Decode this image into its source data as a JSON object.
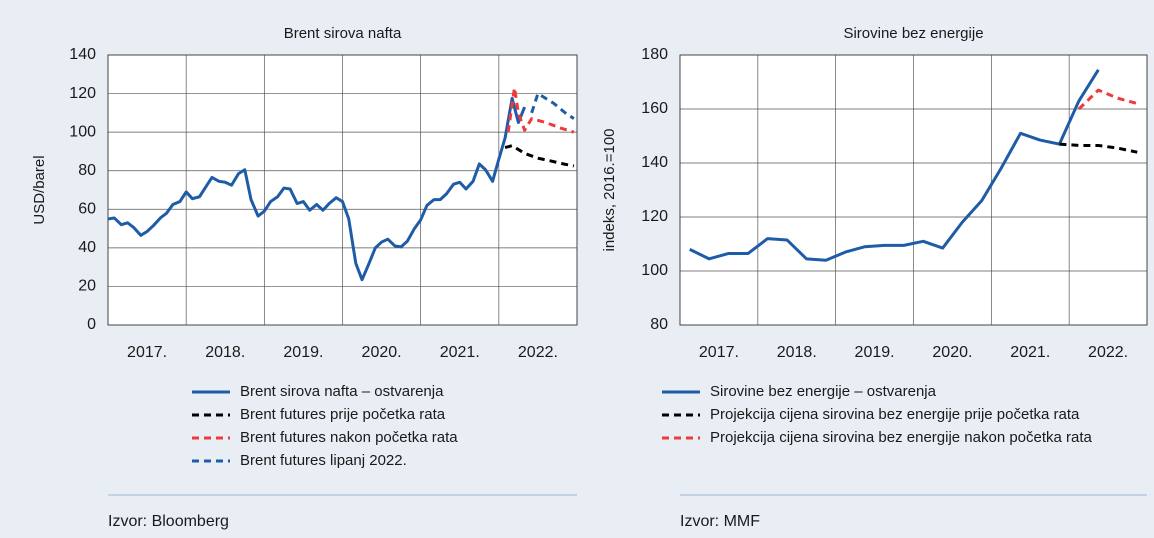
{
  "chart_data": [
    {
      "type": "line",
      "title": "Brent sirova nafta",
      "ylabel": "USD/barel",
      "categories": [
        "2017.",
        "2018.",
        "2019.",
        "2020.",
        "2021.",
        "2022."
      ],
      "xlim": [
        2017,
        2023
      ],
      "ylim": [
        0,
        140
      ],
      "yticks": [
        0,
        20,
        40,
        60,
        80,
        100,
        120,
        140
      ],
      "grid": true,
      "series": [
        {
          "name": "Brent sirova nafta – ostvarenja",
          "color": "#1f5ca8",
          "dashed": false,
          "x": [
            2017.0,
            2017.08,
            2017.17,
            2017.25,
            2017.33,
            2017.42,
            2017.5,
            2017.58,
            2017.67,
            2017.75,
            2017.83,
            2017.92,
            2018.0,
            2018.08,
            2018.17,
            2018.25,
            2018.33,
            2018.42,
            2018.5,
            2018.58,
            2018.67,
            2018.75,
            2018.83,
            2018.92,
            2019.0,
            2019.08,
            2019.17,
            2019.25,
            2019.33,
            2019.42,
            2019.5,
            2019.58,
            2019.67,
            2019.75,
            2019.83,
            2019.92,
            2020.0,
            2020.08,
            2020.17,
            2020.25,
            2020.33,
            2020.42,
            2020.5,
            2020.58,
            2020.67,
            2020.75,
            2020.83,
            2020.92,
            2021.0,
            2021.08,
            2021.17,
            2021.25,
            2021.33,
            2021.42,
            2021.5,
            2021.58,
            2021.67,
            2021.75,
            2021.83,
            2021.92,
            2022.0,
            2022.08,
            2022.17,
            2022.25,
            2022.33
          ],
          "values": [
            55,
            55.5,
            52,
            53,
            50.5,
            46.5,
            48.5,
            51.5,
            55.5,
            58,
            62.5,
            64,
            69,
            65.5,
            66.5,
            71.5,
            76.5,
            74.5,
            74,
            72.5,
            78.5,
            80.5,
            65,
            56.5,
            59,
            64,
            66.5,
            71,
            70.5,
            63,
            64,
            59.5,
            62.5,
            59.5,
            63,
            66,
            64,
            55,
            32,
            23.5,
            31,
            40,
            43,
            44.5,
            41,
            40.5,
            43.5,
            50,
            54.5,
            62,
            65,
            65,
            68,
            73,
            74,
            70.5,
            74.5,
            83.5,
            80.5,
            74.5,
            86,
            97,
            117.5,
            105,
            113
          ]
        },
        {
          "name": "Brent futures prije početka rata",
          "color": "#000000",
          "dashed": true,
          "x": [
            2022.08,
            2022.17,
            2022.33,
            2022.5,
            2022.67,
            2022.83,
            2022.96
          ],
          "values": [
            92,
            93,
            89,
            86.5,
            85,
            83.5,
            82.5
          ]
        },
        {
          "name": "Brent futures nakon početka rata",
          "color": "#ee3a3a",
          "dashed": true,
          "x": [
            2022.12,
            2022.2,
            2022.25,
            2022.33,
            2022.42,
            2022.6,
            2022.8,
            2022.96
          ],
          "values": [
            100,
            123,
            110,
            101,
            107,
            105,
            102,
            100
          ]
        },
        {
          "name": "Brent futures lipanj 2022.",
          "color": "#1f5ca8",
          "dashed": true,
          "x": [
            2022.42,
            2022.5,
            2022.7,
            2022.85,
            2022.96
          ],
          "values": [
            110,
            120,
            115,
            110,
            107
          ]
        }
      ],
      "source": "Izvor: Bloomberg"
    },
    {
      "type": "line",
      "title": "Sirovine bez energije",
      "ylabel": "indeks, 2016.=100",
      "categories": [
        "2017.",
        "2018.",
        "2019.",
        "2020.",
        "2021.",
        "2022."
      ],
      "xlim": [
        2017,
        2023
      ],
      "ylim": [
        80,
        180
      ],
      "yticks": [
        80,
        100,
        120,
        140,
        160,
        180
      ],
      "grid": true,
      "series": [
        {
          "name": "Sirovine bez energije – ostvarenja",
          "color": "#1f5ca8",
          "dashed": false,
          "x": [
            2017.125,
            2017.375,
            2017.625,
            2017.875,
            2018.125,
            2018.375,
            2018.625,
            2018.875,
            2019.125,
            2019.375,
            2019.625,
            2019.875,
            2020.125,
            2020.375,
            2020.625,
            2020.875,
            2021.125,
            2021.375,
            2021.625,
            2021.875,
            2022.125,
            2022.375
          ],
          "values": [
            108,
            104.5,
            106.5,
            106.5,
            112,
            111.5,
            104.5,
            104,
            107,
            109,
            109.5,
            109.5,
            111,
            108.5,
            118,
            126,
            138,
            151,
            148.5,
            147,
            163,
            174.5
          ]
        },
        {
          "name": "Projekcija cijena sirovina bez energije prije početka rata",
          "color": "#000000",
          "dashed": true,
          "x": [
            2021.875,
            2022.125,
            2022.375,
            2022.625,
            2022.875
          ],
          "values": [
            147,
            146.5,
            146.5,
            145.5,
            144
          ]
        },
        {
          "name": "Projekcija cijena sirovina bez energije nakon početka rata",
          "color": "#ee3a3a",
          "dashed": true,
          "x": [
            2022.125,
            2022.375,
            2022.625,
            2022.875
          ],
          "values": [
            160,
            167,
            164,
            162
          ]
        }
      ],
      "source": "Izvor: MMF"
    }
  ]
}
